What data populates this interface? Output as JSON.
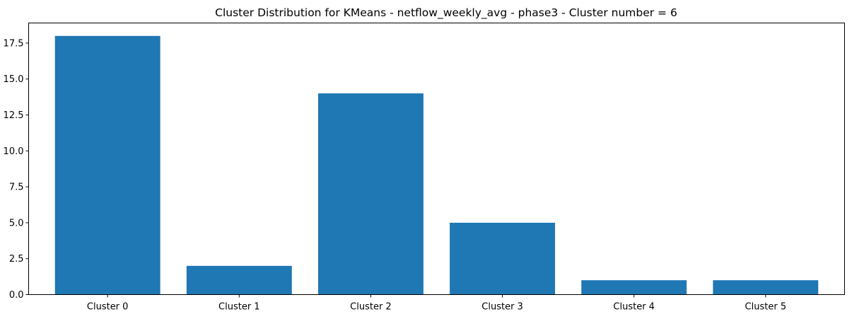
{
  "chart_data": {
    "type": "bar",
    "title": "Cluster Distribution for KMeans - netflow_weekly_avg - phase3 - Cluster number = 6",
    "xlabel": "",
    "ylabel": "",
    "categories": [
      "Cluster 0",
      "Cluster 1",
      "Cluster 2",
      "Cluster 3",
      "Cluster 4",
      "Cluster 5"
    ],
    "values": [
      18,
      2,
      14,
      5,
      1,
      1
    ],
    "ylim": [
      0,
      18.9
    ],
    "yticks": [
      0.0,
      2.5,
      5.0,
      7.5,
      10.0,
      12.5,
      15.0,
      17.5
    ],
    "ytick_labels": [
      "0.0",
      "2.5",
      "5.0",
      "7.5",
      "10.0",
      "12.5",
      "15.0",
      "17.5"
    ],
    "bar_color": "#1f77b4",
    "grid": false,
    "legend": false
  }
}
